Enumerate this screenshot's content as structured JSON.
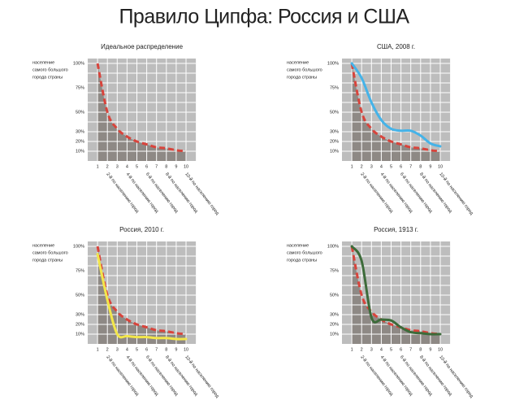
{
  "title": "Правило Ципфа: Россия и США",
  "chart_data": [
    {
      "type": "line",
      "title": "Идеальное распределение",
      "y_label": [
        "население",
        "самого большого",
        "города страны"
      ],
      "x": [
        1,
        2,
        3,
        4,
        5,
        6,
        7,
        8,
        9,
        10
      ],
      "xlim": [
        0,
        11
      ],
      "xticks": [
        1,
        2,
        3,
        4,
        5,
        6,
        7,
        8,
        9,
        10
      ],
      "x_rank_labels": [
        {
          "value": 2,
          "label": "2-й по населению город"
        },
        {
          "value": 4,
          "label": "4-й по населению город"
        },
        {
          "value": 6,
          "label": "6-й по населению город"
        },
        {
          "value": 8,
          "label": "8-й по населению город"
        },
        {
          "value": 10,
          "label": "10-й по населению город"
        }
      ],
      "ylim": [
        0,
        105
      ],
      "yticks": [
        {
          "value": 10,
          "label": "10%"
        },
        {
          "value": 20,
          "label": "20%"
        },
        {
          "value": 30,
          "label": "30%"
        },
        {
          "value": 50,
          "label": "50%"
        },
        {
          "value": 75,
          "label": "75%"
        },
        {
          "value": 100,
          "label": "100%"
        }
      ],
      "grid": true,
      "series": [
        {
          "color": "#d8443c",
          "dashed": true,
          "area_color": "#8e8985",
          "values": [
            100,
            50,
            33,
            25,
            20,
            17,
            14,
            13,
            11,
            10
          ]
        }
      ]
    },
    {
      "type": "line",
      "title": "США, 2008 г.",
      "y_label": [
        "население",
        "самого большого",
        "города страны"
      ],
      "x": [
        1,
        2,
        3,
        4,
        5,
        6,
        7,
        8,
        9,
        10
      ],
      "xlim": [
        0,
        11
      ],
      "xticks": [
        1,
        2,
        3,
        4,
        5,
        6,
        7,
        8,
        9,
        10
      ],
      "x_rank_labels": [
        {
          "value": 2,
          "label": "2-й по населению город"
        },
        {
          "value": 4,
          "label": "4-й по населению город"
        },
        {
          "value": 6,
          "label": "6-й по населению город"
        },
        {
          "value": 8,
          "label": "8-й по населению город"
        },
        {
          "value": 10,
          "label": "10-й по населению город"
        }
      ],
      "ylim": [
        0,
        105
      ],
      "yticks": [
        {
          "value": 10,
          "label": "10%"
        },
        {
          "value": 20,
          "label": "20%"
        },
        {
          "value": 30,
          "label": "30%"
        },
        {
          "value": 50,
          "label": "50%"
        },
        {
          "value": 75,
          "label": "75%"
        },
        {
          "value": 100,
          "label": "100%"
        }
      ],
      "grid": true,
      "series": [
        {
          "color": "#d8443c",
          "dashed": true,
          "area_color": "#8e8985",
          "values": [
            100,
            50,
            33,
            25,
            20,
            17,
            14,
            13,
            11,
            10
          ]
        },
        {
          "color": "#45b3e8",
          "dashed": false,
          "values": [
            100,
            85,
            60,
            42,
            33,
            31,
            31,
            26,
            18,
            15
          ]
        }
      ]
    },
    {
      "type": "line",
      "title": "Россия, 2010 г.",
      "y_label": [
        "население",
        "самого большого",
        "города страны"
      ],
      "x": [
        1,
        2,
        3,
        4,
        5,
        6,
        7,
        8,
        9,
        10
      ],
      "xlim": [
        0,
        11
      ],
      "xticks": [
        1,
        2,
        3,
        4,
        5,
        6,
        7,
        8,
        9,
        10
      ],
      "x_rank_labels": [
        {
          "value": 2,
          "label": "2-й по населению город"
        },
        {
          "value": 4,
          "label": "4-й по населению город"
        },
        {
          "value": 6,
          "label": "6-й по населению город"
        },
        {
          "value": 8,
          "label": "8-й по населению город"
        },
        {
          "value": 10,
          "label": "10-й по населению город"
        }
      ],
      "ylim": [
        0,
        105
      ],
      "yticks": [
        {
          "value": 10,
          "label": "10%"
        },
        {
          "value": 20,
          "label": "20%"
        },
        {
          "value": 30,
          "label": "30%"
        },
        {
          "value": 50,
          "label": "50%"
        },
        {
          "value": 75,
          "label": "75%"
        },
        {
          "value": 100,
          "label": "100%"
        }
      ],
      "grid": true,
      "series": [
        {
          "color": "#d8443c",
          "dashed": true,
          "area_color": "#8e8985",
          "values": [
            100,
            50,
            33,
            25,
            20,
            17,
            14,
            13,
            11,
            10
          ]
        },
        {
          "color": "#f2e64a",
          "dashed": false,
          "values": [
            92,
            45,
            10,
            8,
            7,
            7,
            6,
            6,
            5,
            5
          ]
        }
      ]
    },
    {
      "type": "line",
      "title": "Россия, 1913 г.",
      "y_label": [
        "население",
        "самого большого",
        "города страны"
      ],
      "x": [
        1,
        2,
        3,
        4,
        5,
        6,
        7,
        8,
        9,
        10
      ],
      "xlim": [
        0,
        11
      ],
      "xticks": [
        1,
        2,
        3,
        4,
        5,
        6,
        7,
        8,
        9,
        10
      ],
      "x_rank_labels": [
        {
          "value": 2,
          "label": "2-й по населению город"
        },
        {
          "value": 4,
          "label": "4-й по населению город"
        },
        {
          "value": 6,
          "label": "6-й по населению город"
        },
        {
          "value": 8,
          "label": "8-й по населению город"
        },
        {
          "value": 10,
          "label": "10-й по населению город"
        }
      ],
      "ylim": [
        0,
        105
      ],
      "yticks": [
        {
          "value": 10,
          "label": "10%"
        },
        {
          "value": 20,
          "label": "20%"
        },
        {
          "value": 30,
          "label": "30%"
        },
        {
          "value": 50,
          "label": "50%"
        },
        {
          "value": 75,
          "label": "75%"
        },
        {
          "value": 100,
          "label": "100%"
        }
      ],
      "grid": true,
      "series": [
        {
          "color": "#d8443c",
          "dashed": true,
          "area_color": "#8e8985",
          "values": [
            100,
            50,
            33,
            25,
            20,
            17,
            14,
            13,
            11,
            10
          ]
        },
        {
          "color": "#3d6b3a",
          "dashed": false,
          "values": [
            100,
            85,
            27,
            25,
            24,
            17,
            12,
            11,
            10,
            10
          ]
        }
      ]
    }
  ]
}
